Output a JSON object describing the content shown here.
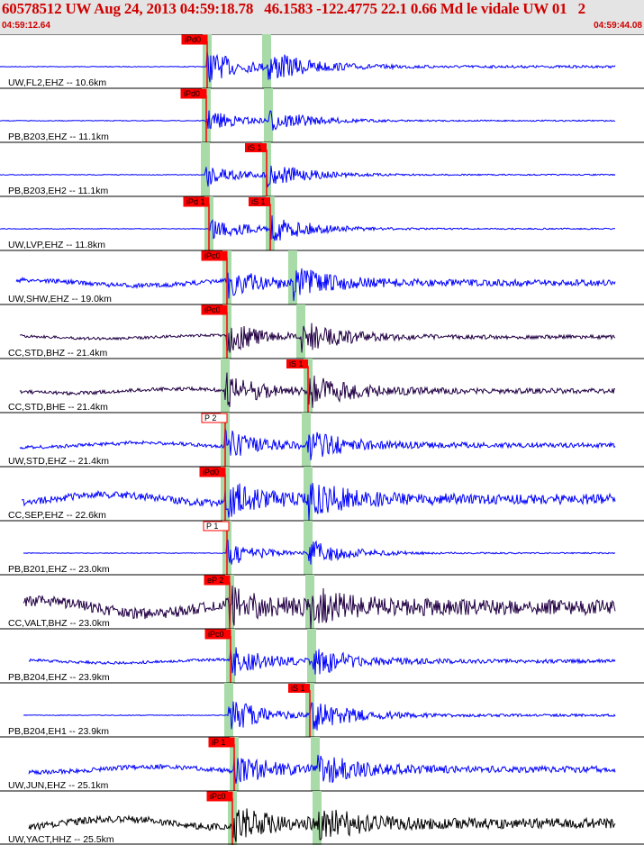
{
  "header": {
    "title": "60578512 UW Aug 24, 2013 04:59:18.78   46.1583 -122.4775 22.1 0.66 Md le vidale UW 01   2",
    "time_start": "04:59:12.64",
    "time_end": "04:59:44.08"
  },
  "colors": {
    "header_bg": "#e4e4e4",
    "header_text": "#d00000",
    "pick_red": "#ff0000",
    "phase_band": "#a8dba8",
    "trace_blue": "#0000ff",
    "trace_purple": "#220044",
    "trace_black": "#000000"
  },
  "traces": [
    {
      "label": "UW,FL2,EHZ -- 10.6km",
      "color": "blue",
      "pick": "iPd0",
      "pick_style": "filled",
      "s_pick": ""
    },
    {
      "label": "PB,B203,EHZ -- 11.1km",
      "color": "blue",
      "pick": "iPd0",
      "pick_style": "filled",
      "s_pick": ""
    },
    {
      "label": "PB,B203,EH2 -- 11.1km",
      "color": "blue",
      "pick": "",
      "pick_style": "filled",
      "s_pick": "iS 1"
    },
    {
      "label": "UW,LVP,EHZ -- 11.8km",
      "color": "blue",
      "pick": "iPd 1",
      "pick_style": "filled",
      "s_pick": "iS 1"
    },
    {
      "label": "UW,SHW,EHZ -- 19.0km",
      "color": "blue",
      "pick": "iPc0",
      "pick_style": "filled",
      "s_pick": ""
    },
    {
      "label": "CC,STD,BHZ -- 21.4km",
      "color": "purple",
      "pick": "iPc0",
      "pick_style": "filled",
      "s_pick": ""
    },
    {
      "label": "CC,STD,BHE -- 21.4km",
      "color": "purple",
      "pick": "",
      "pick_style": "filled",
      "s_pick": "iS 1"
    },
    {
      "label": "UW,STD,EHZ -- 21.4km",
      "color": "blue",
      "pick": "P 2",
      "pick_style": "outline",
      "s_pick": ""
    },
    {
      "label": "CC,SEP,EHZ -- 22.6km",
      "color": "blue",
      "pick": "iPd0",
      "pick_style": "filled",
      "s_pick": ""
    },
    {
      "label": "PB,B201,EHZ -- 23.0km",
      "color": "blue",
      "pick": "P 1",
      "pick_style": "outline",
      "s_pick": ""
    },
    {
      "label": "CC,VALT,BHZ -- 23.0km",
      "color": "purple",
      "pick": "eP 2",
      "pick_style": "filled",
      "s_pick": ""
    },
    {
      "label": "PB,B204,EHZ -- 23.9km",
      "color": "blue",
      "pick": "iPc0",
      "pick_style": "filled",
      "s_pick": ""
    },
    {
      "label": "PB,B204,EH1 -- 23.9km",
      "color": "blue",
      "pick": "",
      "pick_style": "filled",
      "s_pick": "iS 1"
    },
    {
      "label": "UW,JUN,EHZ -- 25.1km",
      "color": "blue",
      "pick": "iP 1",
      "pick_style": "filled",
      "s_pick": ""
    },
    {
      "label": "UW,YACT,HHZ -- 25.5km",
      "color": "black",
      "pick": "iPc0",
      "pick_style": "filled",
      "s_pick": ""
    }
  ]
}
